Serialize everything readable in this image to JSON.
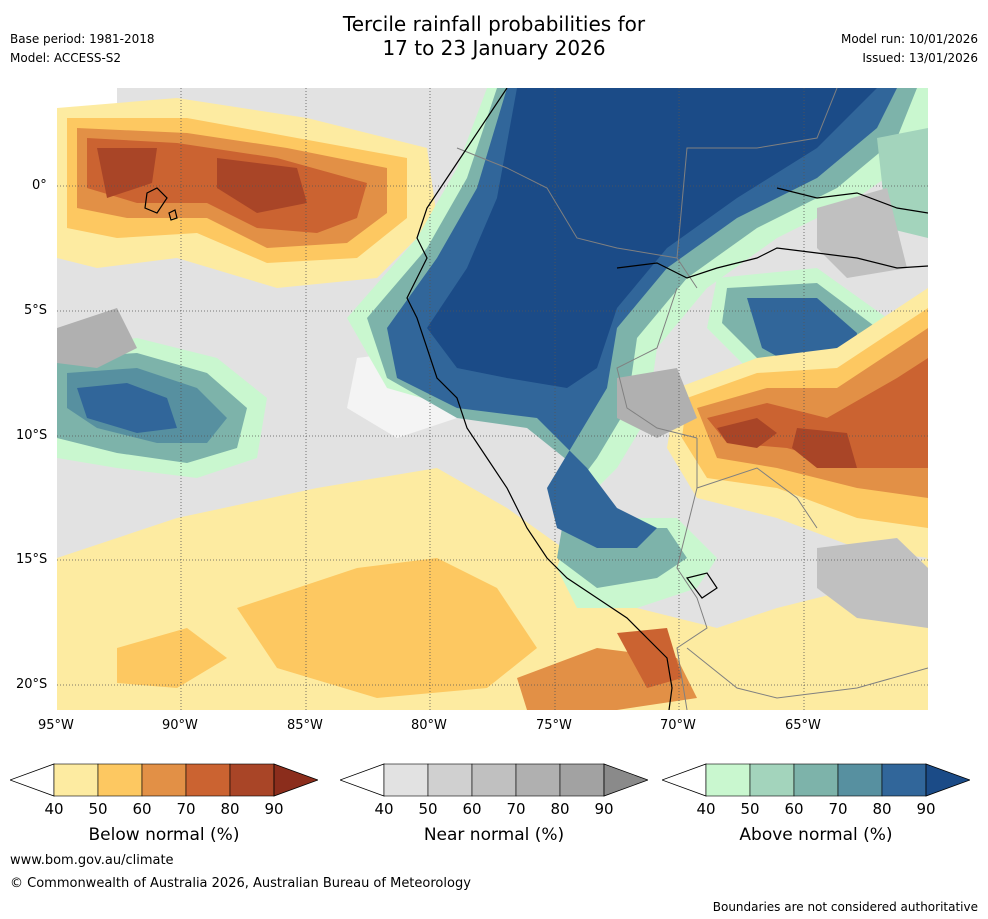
{
  "header": {
    "title_line1": "Tercile rainfall probabilities for",
    "title_line2": "17 to 23 January 2026",
    "base_period": "Base period: 1981-2018",
    "model": "Model: ACCESS-S2",
    "model_run": "Model run: 10/01/2026",
    "issued": "Issued: 13/01/2026"
  },
  "map": {
    "lat_labels": [
      "0°",
      "5°S",
      "10°S",
      "15°S",
      "20°S"
    ],
    "lon_labels": [
      "95°W",
      "90°W",
      "85°W",
      "80°W",
      "75°W",
      "70°W",
      "65°W"
    ]
  },
  "legends": [
    {
      "label": "Below normal (%)",
      "ticks": [
        "40",
        "50",
        "60",
        "70",
        "80",
        "90"
      ],
      "colors": [
        "#ffffff",
        "#fdeba1",
        "#fdc861",
        "#e29046",
        "#cb6331",
        "#a94527",
        "#8b2d1c"
      ]
    },
    {
      "label": "Near normal (%)",
      "ticks": [
        "40",
        "50",
        "60",
        "70",
        "80",
        "90"
      ],
      "colors": [
        "#ffffff",
        "#e2e2e2",
        "#d0d0d0",
        "#c0c0c0",
        "#b0b0b0",
        "#a2a2a2",
        "#8a8a8a"
      ]
    },
    {
      "label": "Above normal (%)",
      "ticks": [
        "40",
        "50",
        "60",
        "70",
        "80",
        "90"
      ],
      "colors": [
        "#ffffff",
        "#c9f7cf",
        "#a3d4bc",
        "#7db3aa",
        "#5790a0",
        "#31669a",
        "#1b4b87"
      ]
    }
  ],
  "footer": {
    "website": "www.bom.gov.au/climate",
    "copyright": "© Commonwealth of Australia 2026, Australian Bureau of Meteorology",
    "disclaimer": "Boundaries are not considered authoritative"
  }
}
